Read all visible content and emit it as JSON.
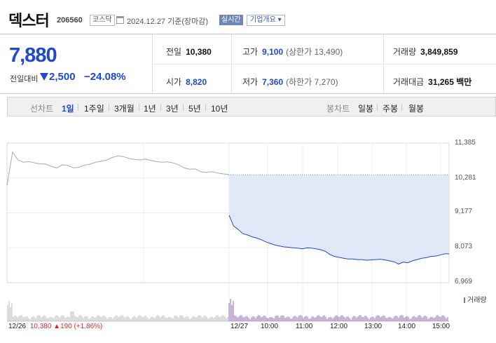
{
  "header": {
    "stock_name": "덱스터",
    "stock_code": "206560",
    "market": "코스닥",
    "date_text": "2024.12.27  기준(장마감)",
    "realtime_label": "실시간",
    "company_button": "기업개요 ▾"
  },
  "quote": {
    "price": "7,880",
    "change_label": "전일대비",
    "change_value": "2,500",
    "change_pct": "−24.08%",
    "prev_close_label": "전일",
    "prev_close": "10,380",
    "high_label": "고가",
    "high": "9,100",
    "upper_limit": "(상한가 13,490)",
    "volume_label": "거래량",
    "volume": "3,849,859",
    "open_label": "시가",
    "open": "8,820",
    "low_label": "저가",
    "low": "7,360",
    "lower_limit": "(하한가 7,270)",
    "amount_label": "거래대금",
    "amount": "31,265 백만"
  },
  "tabs": {
    "line_label": "선차트",
    "line_items": [
      "1일",
      "1주일",
      "3개월",
      "1년",
      "3년",
      "5년",
      "10년"
    ],
    "active_line": "1일",
    "candle_label": "봉차트",
    "candle_items": [
      "일봉",
      "주봉",
      "월봉"
    ]
  },
  "colors": {
    "price_blue": "#1f49d3",
    "up_red": "#d62b2b",
    "prev_day_gray": "#a9a9a9",
    "fill_blue": "#dfe9f8",
    "volume_purple": "#8c6bb1"
  },
  "chart_data": {
    "type": "line",
    "y_ticks": [
      "11,385",
      "10,281",
      "9,177",
      "8,073",
      "6,969"
    ],
    "ylim": [
      6969,
      11385
    ],
    "x_ticks": [
      "12/27",
      "10:00",
      "11:00",
      "12:00",
      "13:00",
      "14:00",
      "15:00"
    ],
    "prev_day_label": "12/26",
    "prev_day_summary": "10,380 ▲190 (+1.86%)",
    "volume_legend": "거래량",
    "reference_price": 10380,
    "series": [
      {
        "values": [
          10050,
          11100,
          10850,
          10780,
          10800,
          10760,
          10730,
          10720,
          10650,
          10600,
          10700,
          10680,
          10600,
          10620,
          10690,
          10720,
          10780,
          10810,
          10850,
          10930,
          10980,
          10960,
          10900,
          10870,
          10850,
          10880,
          10840,
          10800,
          10780,
          10790,
          10760,
          10700,
          10600,
          10560,
          10570,
          10480,
          10460,
          10480,
          10440,
          10410,
          10390
        ]
      },
      {
        "values": [
          9100,
          8760,
          8650,
          8520,
          8480,
          8420,
          8380,
          8330,
          8260,
          8210,
          8160,
          8130,
          8100,
          8090,
          8070,
          8060,
          8040,
          8070,
          8060,
          8040,
          8010,
          7960,
          7860,
          7800,
          7770,
          7740,
          7720,
          7720,
          7700,
          7700,
          7680,
          7690,
          7700,
          7710,
          7690,
          7660,
          7630,
          7560,
          7620,
          7600,
          7660,
          7700,
          7740,
          7760,
          7800,
          7810,
          7840,
          7880,
          7880
        ]
      }
    ]
  }
}
